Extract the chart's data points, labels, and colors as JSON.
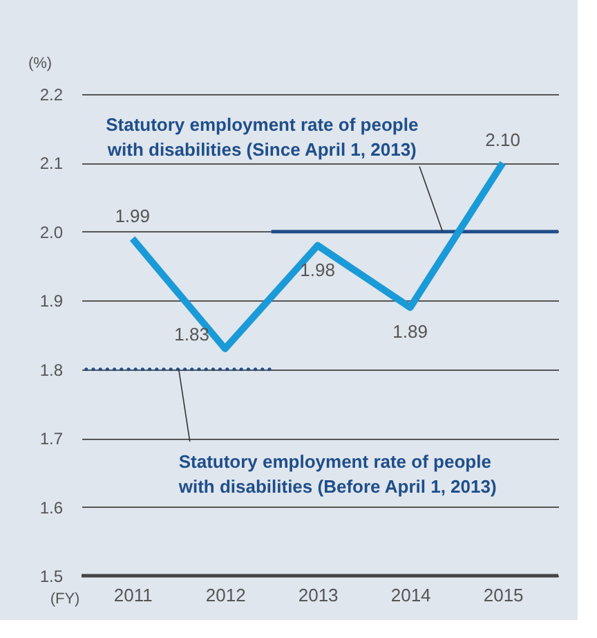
{
  "chart_data": {
    "type": "line",
    "categories": [
      "2011",
      "2012",
      "2013",
      "2014",
      "2015"
    ],
    "series": [
      {
        "color": "#1b9ad8",
        "values": [
          1.99,
          1.83,
          1.98,
          1.89,
          2.1
        ],
        "value_labels": [
          "1.99",
          "1.83",
          "1.98",
          "1.89",
          "2.10"
        ]
      }
    ],
    "ylim": [
      1.5,
      2.2
    ],
    "yticks": [
      1.5,
      1.6,
      1.7,
      1.8,
      1.9,
      {
        "value": 2.0,
        "label": "2.0"
      },
      2.1,
      2.2
    ],
    "ylabel": "(%)",
    "xlabel": "(FY)",
    "grid": "y",
    "marker": "none",
    "line_style": "solid",
    "ref_lines": [
      {
        "axis": "y",
        "value": 2.0,
        "label": "Statutory employment rate of people with disabilities (Since April 1, 2013)",
        "color": "#1f4e8a",
        "line_style": "solid"
      },
      {
        "axis": "y",
        "value": 1.8,
        "label": "Statutory employment rate of people with disabilities (Before April 1, 2013)",
        "color": "#1f4e8a",
        "line_style": "dotted"
      }
    ]
  }
}
